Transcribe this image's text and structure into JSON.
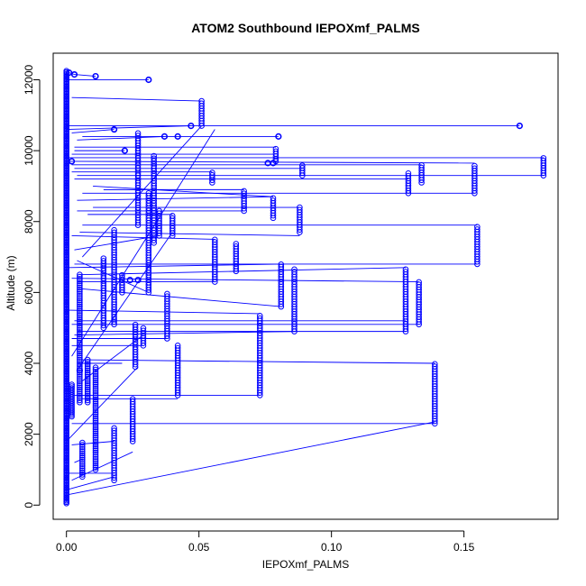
{
  "chart_data": {
    "type": "scatter",
    "title": "ATOM2 Southbound IEPOXmf_PALMS",
    "xlabel": "IEPOXmf_PALMS",
    "ylabel": "Altitude (m)",
    "xlim": [
      -0.005,
      0.1855
    ],
    "ylim": [
      -400,
      12750
    ],
    "xticks": [
      0.0,
      0.05,
      0.1,
      0.15
    ],
    "xtick_labels": [
      "0.00",
      "0.05",
      "0.10",
      "0.15"
    ],
    "yticks": [
      0,
      2000,
      4000,
      6000,
      8000,
      10000,
      12000
    ],
    "ytick_labels": [
      "0",
      "2000",
      "4000",
      "6000",
      "8000",
      "10000",
      "12000"
    ],
    "grid": false,
    "colors": {
      "series": "#0000ff",
      "axis": "#000000"
    },
    "profiles": [
      {
        "x": 0.0,
        "y0": 50,
        "y1": 12250,
        "step": 40
      },
      {
        "x": 0.002,
        "y0": 2500,
        "y1": 3400,
        "step": 50
      },
      {
        "x": 0.005,
        "y0": 2900,
        "y1": 6500,
        "step": 60
      },
      {
        "x": 0.006,
        "y0": 800,
        "y1": 1800,
        "step": 60
      },
      {
        "x": 0.008,
        "y0": 2900,
        "y1": 4100,
        "step": 60
      },
      {
        "x": 0.011,
        "y0": 1000,
        "y1": 3900,
        "step": 60
      },
      {
        "x": 0.014,
        "y0": 5000,
        "y1": 7000,
        "step": 70
      },
      {
        "x": 0.018,
        "y0": 700,
        "y1": 2200,
        "step": 70
      },
      {
        "x": 0.018,
        "y0": 5100,
        "y1": 7800,
        "step": 70
      },
      {
        "x": 0.021,
        "y0": 6000,
        "y1": 6500,
        "step": 70
      },
      {
        "x": 0.025,
        "y0": 1800,
        "y1": 3000,
        "step": 70
      },
      {
        "x": 0.026,
        "y0": 3900,
        "y1": 5100,
        "step": 70
      },
      {
        "x": 0.027,
        "y0": 7900,
        "y1": 10500,
        "step": 70
      },
      {
        "x": 0.029,
        "y0": 4500,
        "y1": 5000,
        "step": 70
      },
      {
        "x": 0.031,
        "y0": 6000,
        "y1": 8800,
        "step": 70
      },
      {
        "x": 0.033,
        "y0": 7400,
        "y1": 9900,
        "step": 70
      },
      {
        "x": 0.035,
        "y0": 7600,
        "y1": 8300,
        "step": 70
      },
      {
        "x": 0.038,
        "y0": 4700,
        "y1": 6000,
        "step": 70
      },
      {
        "x": 0.04,
        "y0": 7600,
        "y1": 8200,
        "step": 70
      },
      {
        "x": 0.042,
        "y0": 3100,
        "y1": 4500,
        "step": 70
      },
      {
        "x": 0.051,
        "y0": 10700,
        "y1": 11400,
        "step": 70
      },
      {
        "x": 0.055,
        "y0": 9100,
        "y1": 9400,
        "step": 70
      },
      {
        "x": 0.056,
        "y0": 6300,
        "y1": 7500,
        "step": 70
      },
      {
        "x": 0.064,
        "y0": 6600,
        "y1": 7400,
        "step": 70
      },
      {
        "x": 0.067,
        "y0": 8300,
        "y1": 8900,
        "step": 70
      },
      {
        "x": 0.073,
        "y0": 3100,
        "y1": 5400,
        "step": 70
      },
      {
        "x": 0.078,
        "y0": 8100,
        "y1": 8700,
        "step": 70
      },
      {
        "x": 0.079,
        "y0": 9700,
        "y1": 10100,
        "step": 70
      },
      {
        "x": 0.081,
        "y0": 5600,
        "y1": 6800,
        "step": 70
      },
      {
        "x": 0.086,
        "y0": 4900,
        "y1": 6700,
        "step": 70
      },
      {
        "x": 0.088,
        "y0": 7700,
        "y1": 8400,
        "step": 70
      },
      {
        "x": 0.089,
        "y0": 9300,
        "y1": 9600,
        "step": 70
      },
      {
        "x": 0.128,
        "y0": 4900,
        "y1": 6700,
        "step": 70
      },
      {
        "x": 0.129,
        "y0": 8800,
        "y1": 9400,
        "step": 70
      },
      {
        "x": 0.133,
        "y0": 5100,
        "y1": 6300,
        "step": 70
      },
      {
        "x": 0.134,
        "y0": 9100,
        "y1": 9600,
        "step": 70
      },
      {
        "x": 0.139,
        "y0": 2300,
        "y1": 4000,
        "step": 70
      },
      {
        "x": 0.154,
        "y0": 8800,
        "y1": 9600,
        "step": 70
      },
      {
        "x": 0.155,
        "y0": 6800,
        "y1": 7900,
        "step": 70
      },
      {
        "x": 0.18,
        "y0": 9300,
        "y1": 9800,
        "step": 70
      }
    ],
    "points": [
      {
        "x": 0.003,
        "y": 12150
      },
      {
        "x": 0.011,
        "y": 12100
      },
      {
        "x": 0.031,
        "y": 12000
      },
      {
        "x": 0.018,
        "y": 10600
      },
      {
        "x": 0.047,
        "y": 10700
      },
      {
        "x": 0.171,
        "y": 10700
      },
      {
        "x": 0.037,
        "y": 10400
      },
      {
        "x": 0.042,
        "y": 10400
      },
      {
        "x": 0.08,
        "y": 10400
      },
      {
        "x": 0.022,
        "y": 10000
      },
      {
        "x": 0.076,
        "y": 9650
      },
      {
        "x": 0.078,
        "y": 9650
      },
      {
        "x": 0.024,
        "y": 6350
      },
      {
        "x": 0.027,
        "y": 6350
      },
      {
        "x": 0.005,
        "y": 3800
      },
      {
        "x": 0.002,
        "y": 9700
      },
      {
        "x": 0.001,
        "y": 12200
      }
    ],
    "connector_lines": [
      [
        0.001,
        12200,
        0.003,
        12150
      ],
      [
        0.003,
        12150,
        0.011,
        12100
      ],
      [
        0.0,
        12000,
        0.031,
        12000
      ],
      [
        0.002,
        11500,
        0.051,
        11400
      ],
      [
        0.0,
        10700,
        0.171,
        10700
      ],
      [
        0.0,
        10600,
        0.047,
        10700
      ],
      [
        0.002,
        10500,
        0.018,
        10600
      ],
      [
        0.006,
        10400,
        0.08,
        10400
      ],
      [
        0.004,
        10300,
        0.037,
        10400
      ],
      [
        0.003,
        10100,
        0.079,
        10100
      ],
      [
        0.003,
        10000,
        0.022,
        10000
      ],
      [
        0.002,
        9900,
        0.078,
        9900
      ],
      [
        0.001,
        9800,
        0.18,
        9800
      ],
      [
        0.001,
        9700,
        0.154,
        9650
      ],
      [
        0.002,
        9600,
        0.134,
        9600
      ],
      [
        0.003,
        9500,
        0.089,
        9500
      ],
      [
        0.002,
        9400,
        0.055,
        9400
      ],
      [
        0.004,
        9300,
        0.18,
        9300
      ],
      [
        0.003,
        9200,
        0.129,
        9200
      ],
      [
        0.01,
        9000,
        0.078,
        8700
      ],
      [
        0.014,
        8900,
        0.067,
        8900
      ],
      [
        0.006,
        8800,
        0.154,
        8800
      ],
      [
        0.004,
        8600,
        0.078,
        8700
      ],
      [
        0.01,
        8400,
        0.088,
        8400
      ],
      [
        0.004,
        8300,
        0.067,
        8300
      ],
      [
        0.008,
        8200,
        0.04,
        8200
      ],
      [
        0.006,
        7900,
        0.155,
        7900
      ],
      [
        0.005,
        7700,
        0.088,
        7600
      ],
      [
        0.002,
        7600,
        0.056,
        7500
      ],
      [
        0.003,
        7200,
        0.035,
        7600
      ],
      [
        0.006,
        7000,
        0.051,
        10700
      ],
      [
        0.003,
        6800,
        0.155,
        6800
      ],
      [
        0.001,
        6700,
        0.081,
        6800
      ],
      [
        0.005,
        6500,
        0.128,
        6700
      ],
      [
        0.002,
        6400,
        0.133,
        6300
      ],
      [
        0.004,
        6300,
        0.056,
        6300
      ],
      [
        0.006,
        6100,
        0.081,
        5600
      ],
      [
        0.001,
        5500,
        0.073,
        5400
      ],
      [
        0.003,
        5200,
        0.128,
        5200
      ],
      [
        0.002,
        5100,
        0.133,
        5100
      ],
      [
        0.004,
        4900,
        0.128,
        4900
      ],
      [
        0.003,
        4800,
        0.086,
        4900
      ],
      [
        0.002,
        4700,
        0.038,
        4700
      ],
      [
        0.002,
        4500,
        0.029,
        4500
      ],
      [
        0.005,
        4100,
        0.139,
        4000
      ],
      [
        0.004,
        4000,
        0.021,
        4000
      ],
      [
        0.003,
        3100,
        0.073,
        3100
      ],
      [
        0.006,
        3000,
        0.042,
        3000
      ],
      [
        0.002,
        2300,
        0.139,
        2300
      ],
      [
        0.002,
        1700,
        0.018,
        1800
      ],
      [
        0.003,
        1200,
        0.006,
        1300
      ],
      [
        0.001,
        900,
        0.018,
        900
      ],
      [
        0.002,
        700,
        0.025,
        1500
      ],
      [
        0.001,
        450,
        0.018,
        800
      ],
      [
        0.001,
        300,
        0.139,
        2350
      ],
      [
        0.0,
        1800,
        0.027,
        3900
      ],
      [
        0.006,
        3500,
        0.029,
        4800
      ],
      [
        0.004,
        3800,
        0.04,
        7700
      ],
      [
        0.002,
        4200,
        0.056,
        10600
      ],
      [
        0.004,
        6900,
        0.031,
        6000
      ]
    ]
  }
}
